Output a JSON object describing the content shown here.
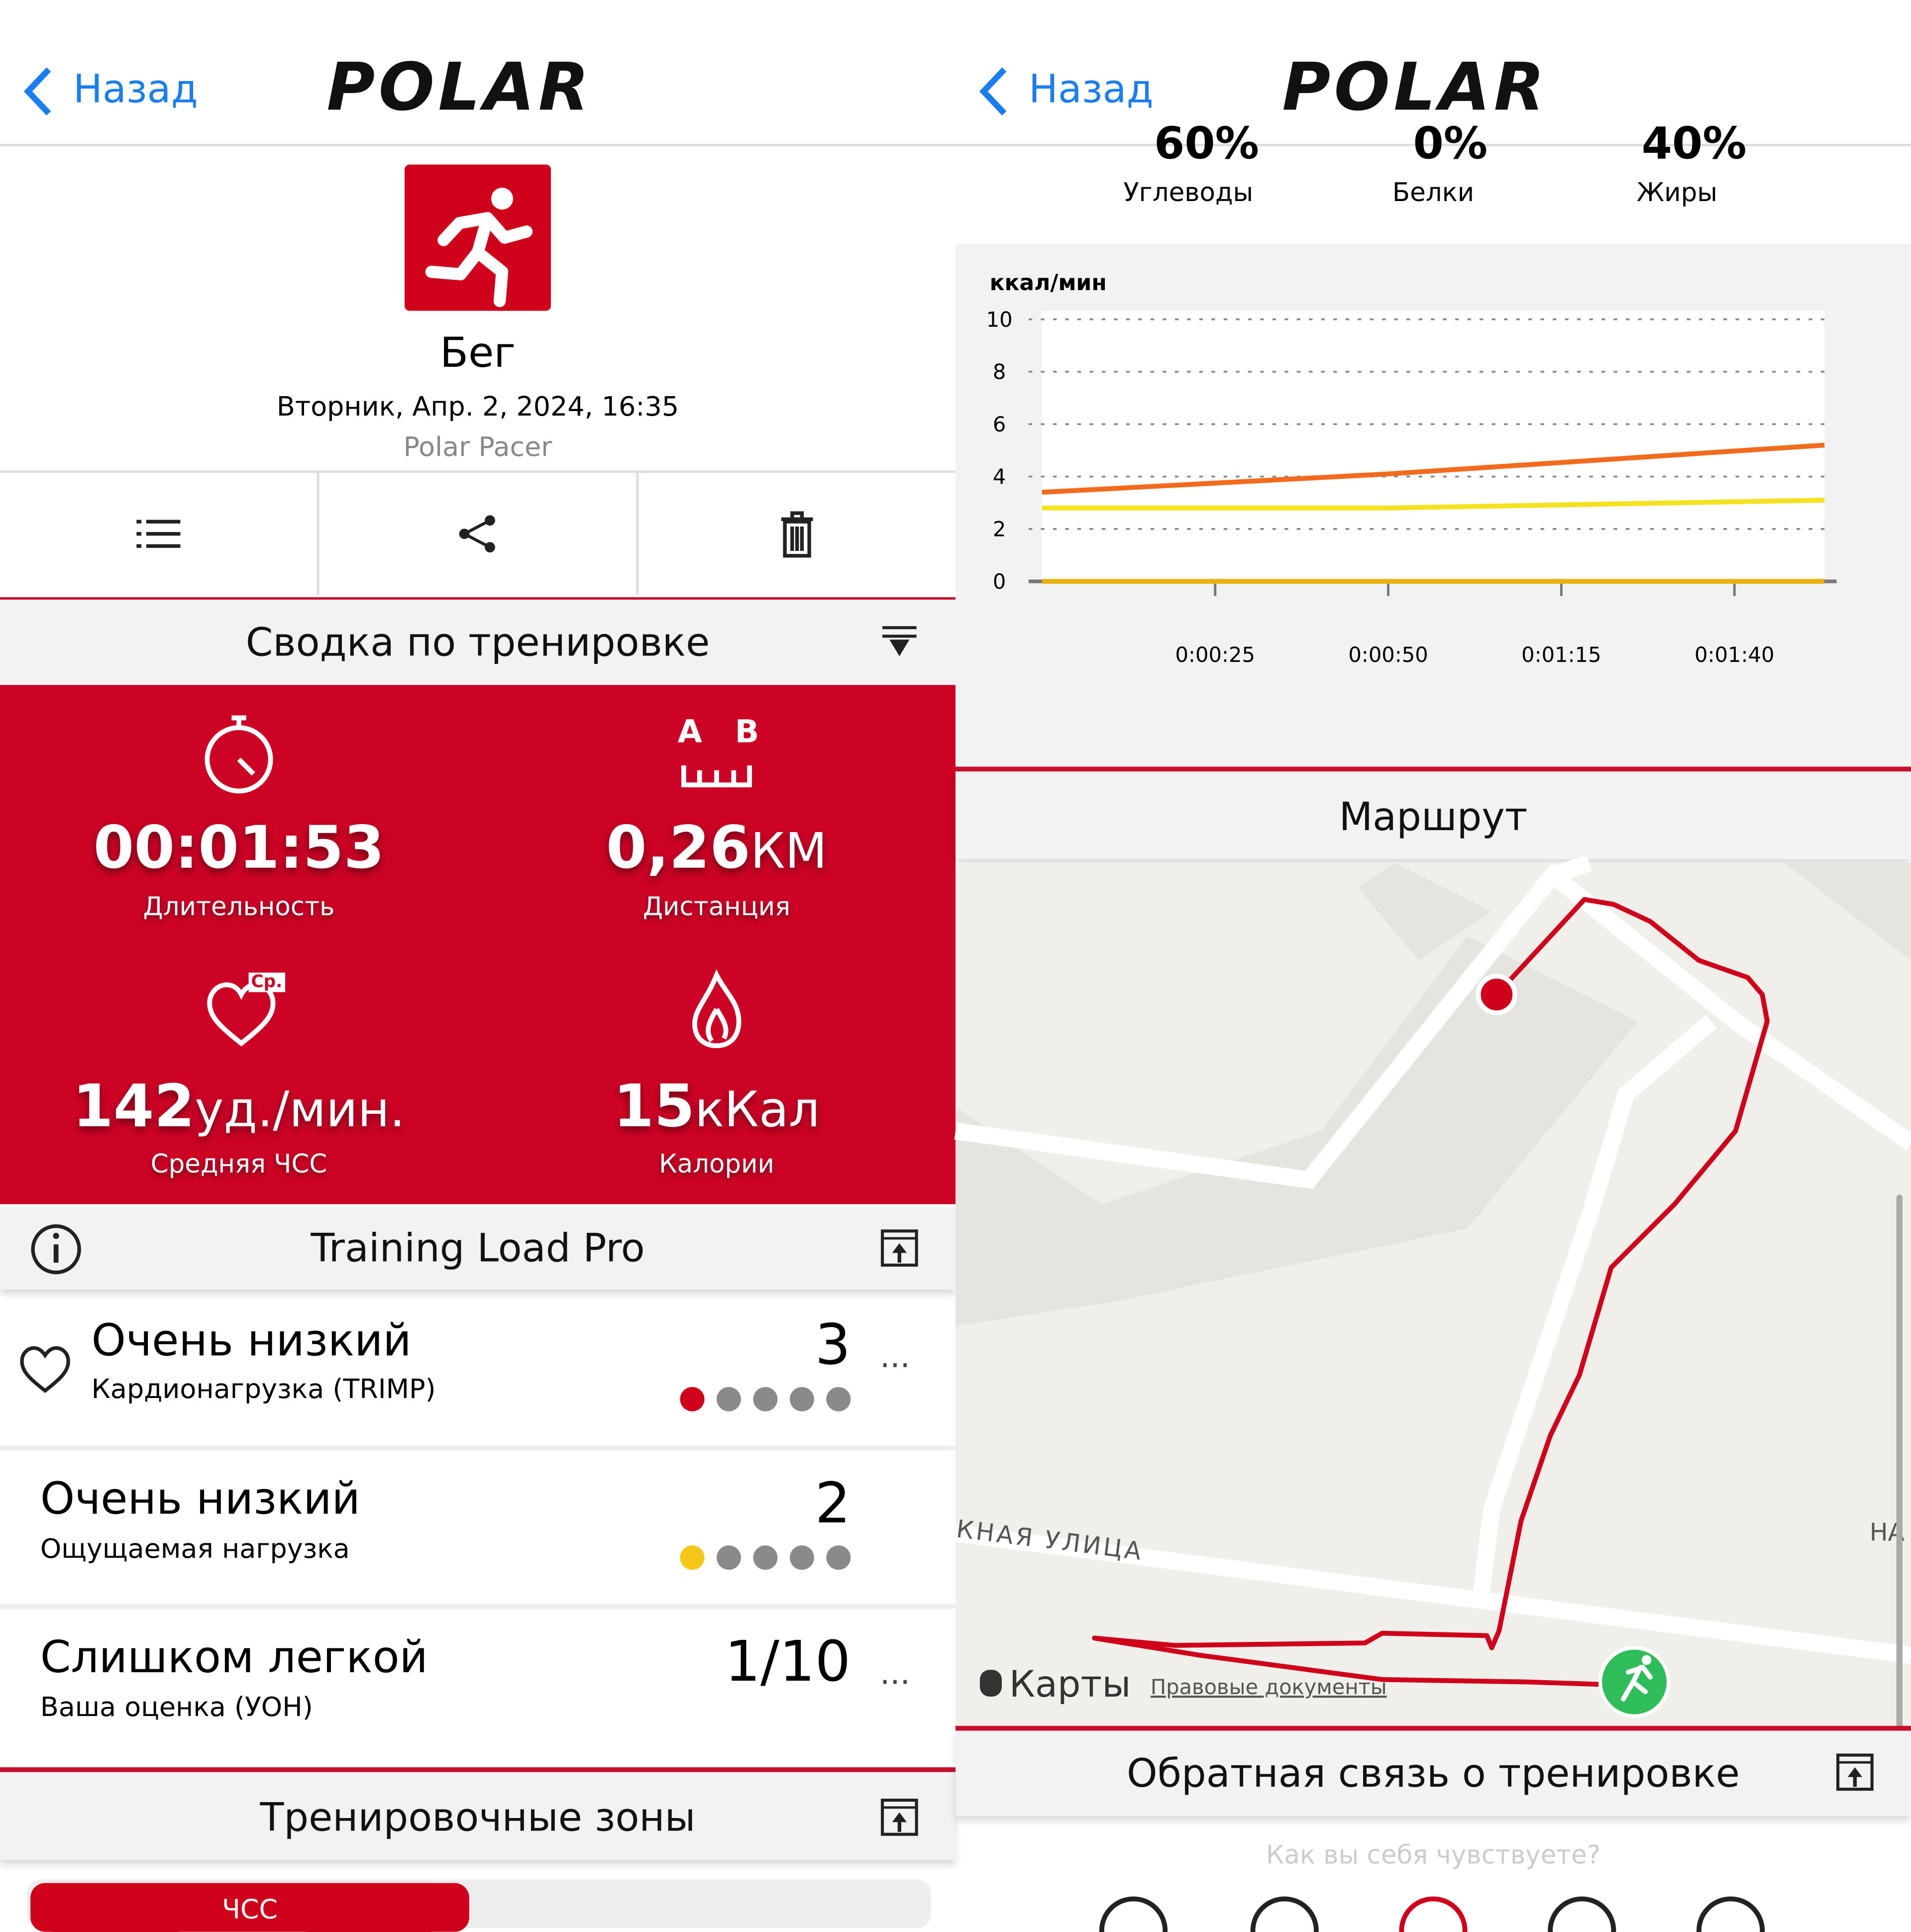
{
  "left": {
    "back": "Назад",
    "logo": "POLAR",
    "activity": "Бег",
    "date": "Вторник, Апр. 2, 2024, 16:35",
    "device": "Polar Pacer",
    "summary": {
      "title": "Сводка по тренировке",
      "ab": [
        "A",
        "B"
      ],
      "avg_badge": "Ср.",
      "stats": [
        {
          "value": "00:01:53",
          "label": "Длительность"
        },
        {
          "value": "0,26",
          "unit": "КМ",
          "label": "Дистанция"
        },
        {
          "value": "142",
          "unit": "уд./мин.",
          "label": "Средняя ЧСС"
        },
        {
          "value": "15",
          "unit": "кКал",
          "label": "Калории"
        }
      ]
    },
    "training_load": {
      "title": "Training Load Pro",
      "items": [
        {
          "level": "Очень низкий",
          "label": "Кардионагрузка (TRIMP)",
          "score": 3
        },
        {
          "level": "Очень низкий",
          "label": "Ощущаемая нагрузка",
          "score": 2
        },
        {
          "level": "Слишком легкой",
          "label": "Ваша оценка (УОН)",
          "score": "1/10"
        }
      ]
    },
    "zones": {
      "title": "Тренировочные зоны",
      "tab": "ЧСС"
    }
  },
  "right": {
    "back": "Назад",
    "logo": "POLAR",
    "macros": [
      {
        "value": "60%",
        "label": "Углеводы"
      },
      {
        "value": "0%",
        "label": "Белки"
      },
      {
        "value": "40%",
        "label": "Жиры"
      }
    ],
    "route": {
      "title": "Маршрут",
      "street": "КНАЯ УЛИЦА",
      "street2": "НА",
      "maps": "Карты",
      "legal": "Правовые документы"
    },
    "feedback": {
      "title": "Обратная связь о тренировке",
      "question": "Как вы себя чувствуете?"
    }
  },
  "chart_data": {
    "type": "line",
    "y_label": "ккал/мин",
    "x": [
      0,
      50,
      113
    ],
    "xlim": [
      0,
      113
    ],
    "xticks": [
      {
        "value": 25,
        "label": "0:00:25"
      },
      {
        "value": 50,
        "label": "0:00:50"
      },
      {
        "value": 75,
        "label": "0:01:15"
      },
      {
        "value": 100,
        "label": "0:01:40"
      }
    ],
    "ylim": [
      0,
      10
    ],
    "yticks": [
      0,
      2,
      4,
      6,
      8,
      10
    ],
    "grid": true,
    "series": [
      {
        "color": "#f26a1b",
        "values": [
          3.4,
          4.1,
          5.2
        ]
      },
      {
        "color": "#f5e11e",
        "values": [
          2.8,
          2.8,
          3.1
        ]
      },
      {
        "color": "#e8b010",
        "values": [
          0,
          0,
          0
        ]
      }
    ]
  }
}
